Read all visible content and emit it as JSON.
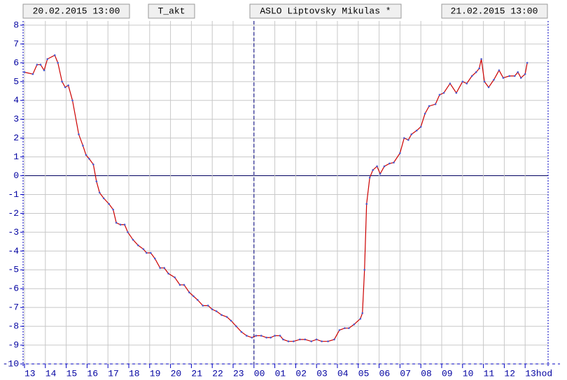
{
  "chart_data": {
    "type": "line",
    "start_time": "20.02.2015 13:00",
    "series_label": "T_akt",
    "title": "ASLO Liptovsky Mikulas *",
    "end_time": "21.02.2015 13:00",
    "x": [
      0,
      0.4,
      0.6,
      0.77,
      0.94,
      1.1,
      1.45,
      1.6,
      1.8,
      1.95,
      2.1,
      2.3,
      2.6,
      2.8,
      2.95,
      3.1,
      3.3,
      3.45,
      3.6,
      3.8,
      4.05,
      4.25,
      4.4,
      4.6,
      4.8,
      4.95,
      5.2,
      5.45,
      5.7,
      5.85,
      6.05,
      6.25,
      6.5,
      6.7,
      6.9,
      7.2,
      7.45,
      7.65,
      7.9,
      8.1,
      8.3,
      8.55,
      8.8,
      9.0,
      9.2,
      9.45,
      9.7,
      9.9,
      10.15,
      10.4,
      10.65,
      10.9,
      11.1,
      11.35,
      11.6,
      11.8,
      12.0,
      12.25,
      12.4,
      12.65,
      12.9,
      13.2,
      13.45,
      13.75,
      14.0,
      14.25,
      14.55,
      14.85,
      15.1,
      15.35,
      15.55,
      15.8,
      16.1,
      16.2,
      16.3,
      16.4,
      16.55,
      16.7,
      16.9,
      17.05,
      17.25,
      17.5,
      17.7,
      18.0,
      18.2,
      18.4,
      18.55,
      18.8,
      19.0,
      19.2,
      19.4,
      19.7,
      19.9,
      20.1,
      20.4,
      20.7,
      21.0,
      21.2,
      21.45,
      21.65,
      21.8,
      21.9,
      22.05,
      22.25,
      22.5,
      22.75,
      22.95,
      23.25,
      23.5,
      23.65,
      23.8,
      24.0,
      24.1
    ],
    "series": [
      {
        "name": "T_akt",
        "color": "#cc0000",
        "marker_color": "#4a5ad0",
        "values": [
          5.5,
          5.4,
          5.9,
          5.9,
          5.6,
          6.2,
          6.4,
          6.0,
          5.0,
          4.7,
          4.8,
          4.0,
          2.2,
          1.6,
          1.1,
          0.9,
          0.6,
          -0.3,
          -0.9,
          -1.2,
          -1.5,
          -1.8,
          -2.5,
          -2.6,
          -2.6,
          -3.0,
          -3.4,
          -3.7,
          -3.9,
          -4.1,
          -4.1,
          -4.4,
          -4.9,
          -4.9,
          -5.2,
          -5.4,
          -5.8,
          -5.8,
          -6.2,
          -6.4,
          -6.6,
          -6.9,
          -6.9,
          -7.1,
          -7.2,
          -7.4,
          -7.5,
          -7.7,
          -8.0,
          -8.3,
          -8.5,
          -8.6,
          -8.5,
          -8.5,
          -8.6,
          -8.6,
          -8.5,
          -8.5,
          -8.7,
          -8.8,
          -8.8,
          -8.7,
          -8.7,
          -8.8,
          -8.7,
          -8.8,
          -8.8,
          -8.7,
          -8.2,
          -8.1,
          -8.1,
          -7.9,
          -7.6,
          -7.3,
          -5.0,
          -1.5,
          -0.1,
          0.3,
          0.5,
          0.1,
          0.5,
          0.65,
          0.7,
          1.2,
          2.0,
          1.9,
          2.2,
          2.4,
          2.6,
          3.3,
          3.7,
          3.8,
          4.3,
          4.4,
          4.9,
          4.4,
          5.0,
          4.9,
          5.3,
          5.5,
          5.7,
          6.2,
          5.0,
          4.7,
          5.1,
          5.6,
          5.2,
          5.3,
          5.3,
          5.5,
          5.2,
          5.4,
          6.0
        ]
      }
    ],
    "xlim": [
      0,
      25
    ],
    "xticks": [
      {
        "value": 0,
        "label": "13"
      },
      {
        "value": 1,
        "label": "14"
      },
      {
        "value": 2,
        "label": "15"
      },
      {
        "value": 3,
        "label": "16"
      },
      {
        "value": 4,
        "label": "17"
      },
      {
        "value": 5,
        "label": "18"
      },
      {
        "value": 6,
        "label": "19"
      },
      {
        "value": 7,
        "label": "20"
      },
      {
        "value": 8,
        "label": "21"
      },
      {
        "value": 9,
        "label": "22"
      },
      {
        "value": 10,
        "label": "23"
      },
      {
        "value": 11,
        "label": "00"
      },
      {
        "value": 12,
        "label": "01"
      },
      {
        "value": 13,
        "label": "02"
      },
      {
        "value": 14,
        "label": "03"
      },
      {
        "value": 15,
        "label": "04"
      },
      {
        "value": 16,
        "label": "05"
      },
      {
        "value": 17,
        "label": "06"
      },
      {
        "value": 18,
        "label": "07"
      },
      {
        "value": 19,
        "label": "08"
      },
      {
        "value": 20,
        "label": "09"
      },
      {
        "value": 21,
        "label": "10"
      },
      {
        "value": 22,
        "label": "11"
      },
      {
        "value": 23,
        "label": "12"
      },
      {
        "value": 24,
        "label": "13hod"
      }
    ],
    "ylim": [
      -10,
      8
    ],
    "yticks": [
      -10,
      -9,
      -8,
      -7,
      -6,
      -5,
      -4,
      -3,
      -2,
      -1,
      0,
      1,
      2,
      3,
      4,
      5,
      6,
      7,
      8
    ],
    "midnight_x": 11,
    "grid": true
  }
}
